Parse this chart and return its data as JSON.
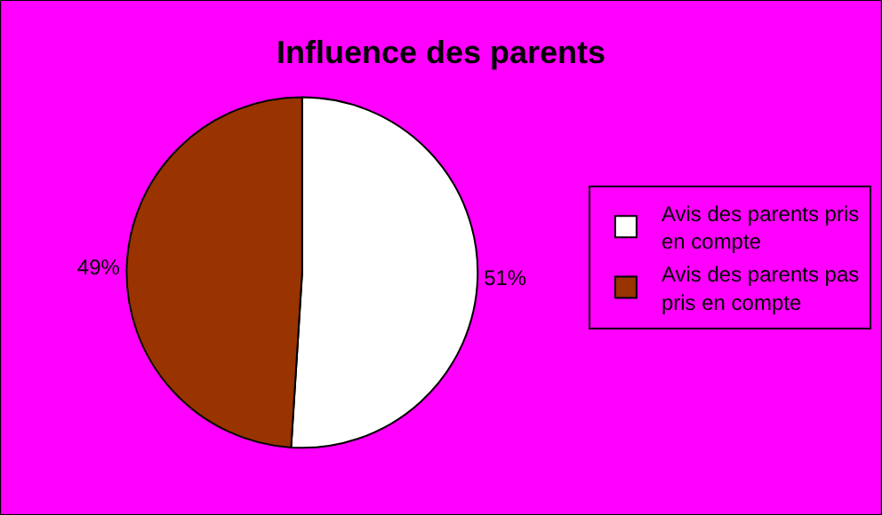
{
  "chart_data": {
    "type": "pie",
    "title": "Influence des parents",
    "categories": [
      "Avis des parents pris en compte",
      "Avis des parents pas pris en compte"
    ],
    "values": [
      51,
      49
    ],
    "colors": [
      "#ffffff",
      "#993300"
    ],
    "value_labels": [
      "51%",
      "49%"
    ],
    "legend": "right"
  }
}
